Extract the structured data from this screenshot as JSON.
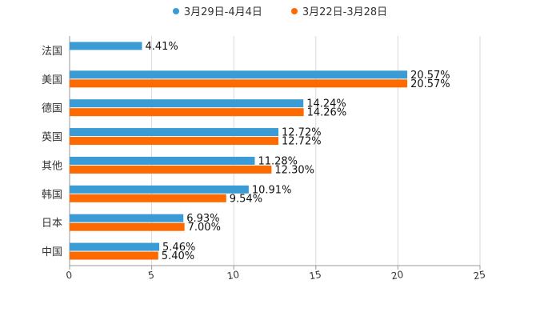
{
  "chart_data": {
    "type": "bar",
    "orientation": "horizontal",
    "categories": [
      "法国",
      "美国",
      "德国",
      "英国",
      "其他",
      "韩国",
      "日本",
      "中国"
    ],
    "series": [
      {
        "name": "3月29日-4月4日",
        "color": "#3a9bd5",
        "values": [
          4.41,
          20.57,
          14.24,
          12.72,
          11.28,
          10.91,
          6.93,
          5.46
        ],
        "labels": [
          "4.41%",
          "20.57%",
          "14.24%",
          "12.72%",
          "11.28%",
          "10.91%",
          "6.93%",
          "5.46%"
        ]
      },
      {
        "name": "3月22日-3月28日",
        "color": "#ff6a00",
        "values": [
          null,
          20.57,
          14.26,
          12.72,
          12.3,
          9.54,
          7.0,
          5.4
        ],
        "labels": [
          null,
          "20.57%",
          "14.26%",
          "12.72%",
          "12.30%",
          "9.54%",
          "7.00%",
          "5.40%"
        ]
      }
    ],
    "xlim": [
      0,
      25
    ],
    "xticks": [
      "0",
      "5",
      "10",
      "15",
      "20",
      "25"
    ],
    "xlabel": "",
    "ylabel": "",
    "grid": true,
    "legend_position": "top-center"
  }
}
